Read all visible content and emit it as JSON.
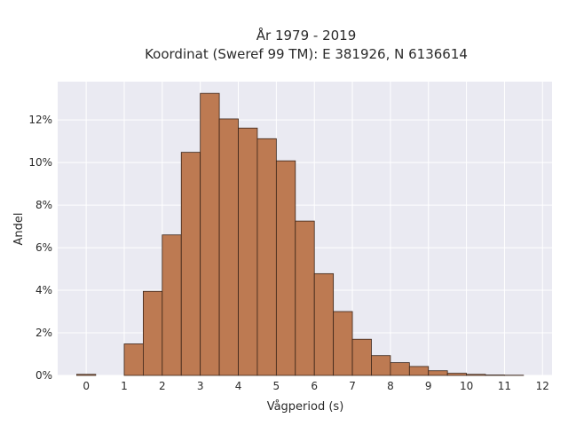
{
  "chart_data": {
    "type": "bar",
    "title": "År 1979 - 2019",
    "subtitle": "Koordinat (Sweref 99 TM): E 381926, N 6136614",
    "xlabel": "Vågperiod (s)",
    "ylabel": "Andel",
    "xlim": [
      -0.75,
      12.25
    ],
    "ylim": [
      0,
      0.138
    ],
    "x_ticks": [
      0,
      1,
      2,
      3,
      4,
      5,
      6,
      7,
      8,
      9,
      10,
      11,
      12
    ],
    "x_tick_labels": [
      "0",
      "1",
      "2",
      "3",
      "4",
      "5",
      "6",
      "7",
      "8",
      "9",
      "10",
      "11",
      "12"
    ],
    "y_ticks": [
      0,
      0.02,
      0.04,
      0.06,
      0.08,
      0.1,
      0.12
    ],
    "y_tick_labels": [
      "0%",
      "2%",
      "4%",
      "6%",
      "8%",
      "10%",
      "12%"
    ],
    "bin_width": 0.5,
    "bin_starts": [
      -0.25,
      1.0,
      1.5,
      2.0,
      2.5,
      3.0,
      3.5,
      4.0,
      4.5,
      5.0,
      5.5,
      6.0,
      6.5,
      7.0,
      7.5,
      8.0,
      8.5,
      9.0,
      9.5,
      10.0,
      10.5,
      11.0
    ],
    "values": [
      0.0005,
      0.0148,
      0.0395,
      0.066,
      0.1048,
      0.1325,
      0.1205,
      0.1162,
      0.1112,
      0.1008,
      0.0725,
      0.0478,
      0.03,
      0.017,
      0.0093,
      0.006,
      0.0042,
      0.0022,
      0.001,
      0.0005,
      0.0002,
      0.0001
    ],
    "grid": true,
    "background_color": "#eaeaf2",
    "bar_color": "#bd7a52",
    "bar_edge_color": "#3a2418"
  }
}
